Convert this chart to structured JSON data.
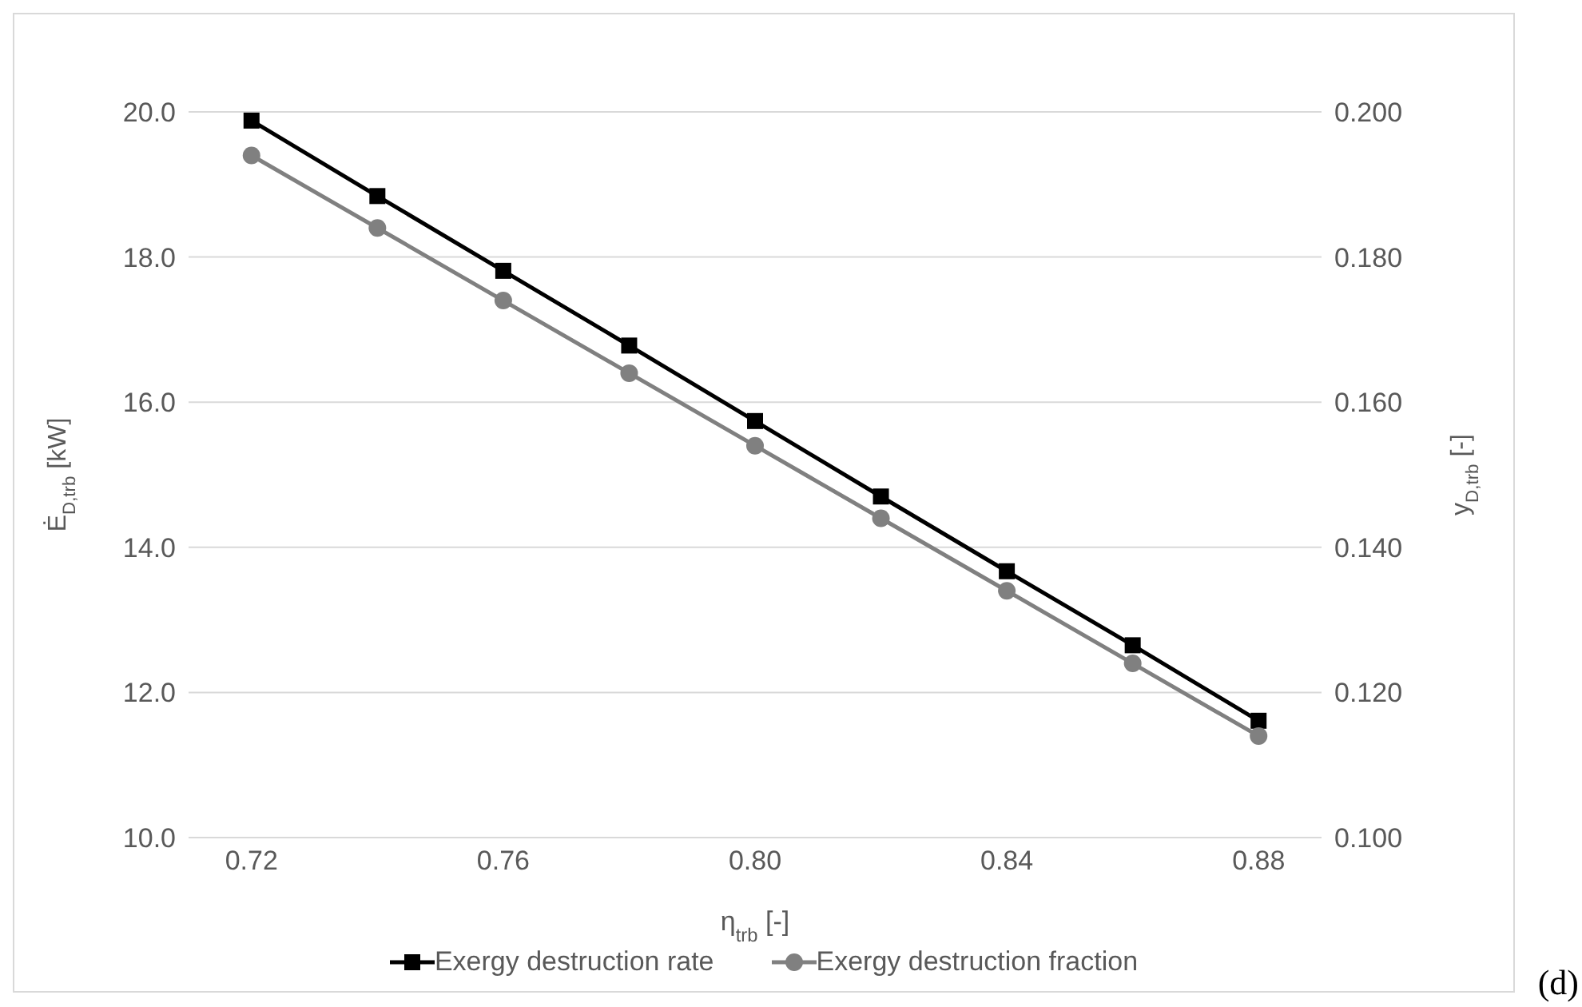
{
  "chart_data": {
    "type": "line",
    "categories": [
      "0.72",
      null,
      "0.76",
      null,
      "0.80",
      null,
      "0.84",
      null,
      "0.88"
    ],
    "xlabel": "η$_{trb}$ [-]",
    "ylabel": "Ė$_{D,trb}$ [kW]",
    "y2label": "y$_{D,trb}$ [-]",
    "ylim": [
      10,
      20
    ],
    "yticks": [
      {
        "value": 10,
        "label": "10.0"
      },
      {
        "value": 12,
        "label": "12.0"
      },
      {
        "value": 14,
        "label": "14.0"
      },
      {
        "value": 16,
        "label": "16.0"
      },
      {
        "value": 18,
        "label": "18.0"
      },
      {
        "value": 20,
        "label": "20.0"
      }
    ],
    "y2lim": [
      0.1,
      0.2
    ],
    "y2ticks": [
      {
        "value": 0.1,
        "label": "0.100"
      },
      {
        "value": 0.12,
        "label": "0.120"
      },
      {
        "value": 0.14,
        "label": "0.140"
      },
      {
        "value": 0.16,
        "label": "0.160"
      },
      {
        "value": 0.18,
        "label": "0.180"
      },
      {
        "value": 0.2,
        "label": "0.200"
      }
    ],
    "series": [
      {
        "name": "Exergy destruction rate",
        "color": "#000000",
        "marker": "square",
        "values": [
          19.88,
          18.84,
          17.81,
          16.78,
          15.74,
          14.7,
          13.67,
          12.65,
          11.61
        ]
      },
      {
        "name": "Exergy destruction fraction",
        "color": "#808080",
        "marker": "circle",
        "axis": "y2",
        "values": [
          0.194,
          0.184,
          0.174,
          0.164,
          0.154,
          0.144,
          0.134,
          0.124,
          0.114
        ]
      }
    ],
    "grid": "y",
    "legend": "bottom",
    "line_style": "solid",
    "annotations": [
      "(d)"
    ]
  }
}
